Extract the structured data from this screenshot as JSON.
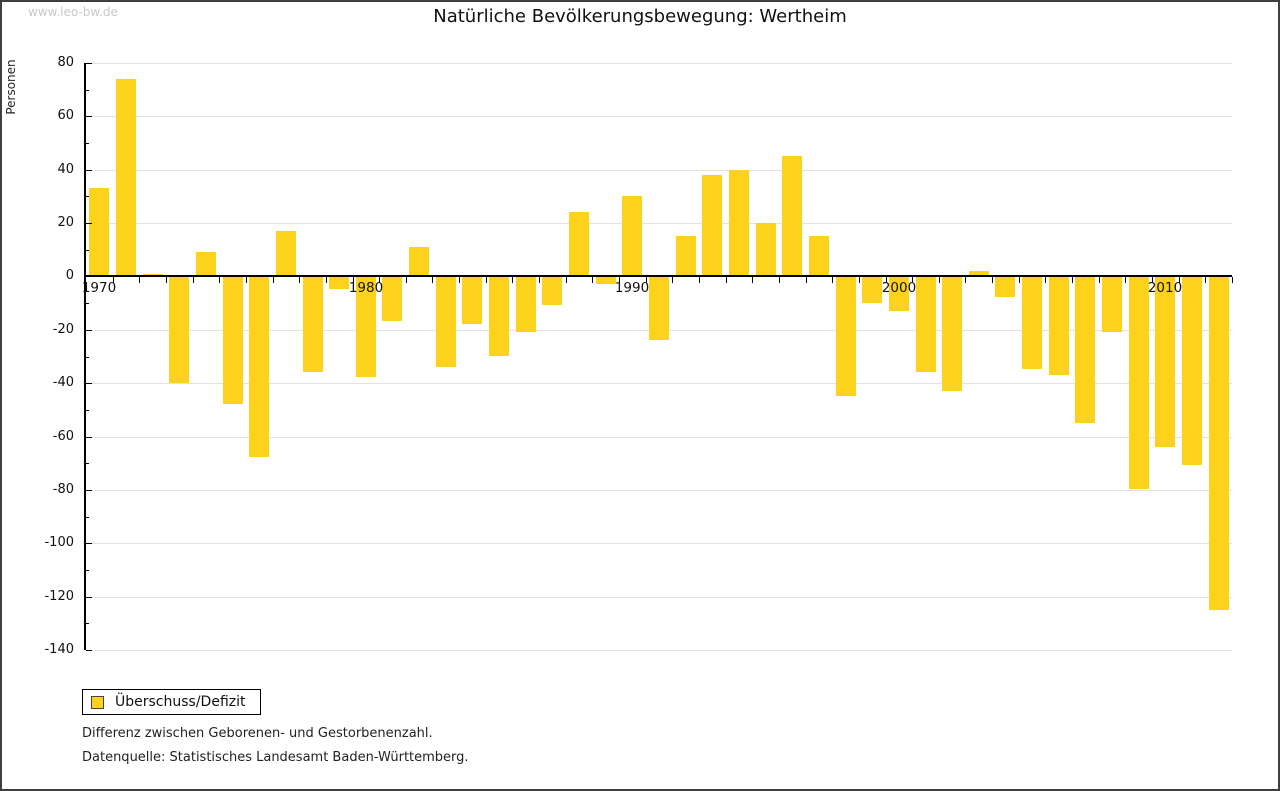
{
  "watermark": "www.leo-bw.de",
  "title": "Natürliche Bevölkerungsbewegung: Wertheim",
  "legend": {
    "label": "Überschuss/Defizit"
  },
  "footnotes": {
    "line1": "Differenz zwischen Geborenen- und Gestorbenenzahl.",
    "line2": "Datenquelle: Statistisches Landesamt Baden-Württemberg."
  },
  "colors": {
    "bar": "#fcd21c",
    "grid": "#e2e2e2",
    "axis": "#000000",
    "watermark": "#c9c9c9"
  },
  "chart_data": {
    "type": "bar",
    "title": "Natürliche Bevölkerungsbewegung: Wertheim",
    "ylabel": "Personen",
    "xlabel": "",
    "ylim": [
      -140,
      80
    ],
    "ytick_step": 20,
    "yminor_step": 10,
    "grid": true,
    "legend_position": "bottom-left",
    "x": [
      1970,
      1971,
      1972,
      1973,
      1974,
      1975,
      1976,
      1977,
      1978,
      1979,
      1980,
      1981,
      1982,
      1983,
      1984,
      1985,
      1986,
      1987,
      1988,
      1989,
      1990,
      1991,
      1992,
      1993,
      1994,
      1995,
      1996,
      1997,
      1998,
      1999,
      2000,
      2001,
      2002,
      2003,
      2004,
      2005,
      2006,
      2007,
      2008,
      2009,
      2010,
      2011,
      2012
    ],
    "xtick_labels": [
      "1970",
      "1980",
      "1990",
      "2000",
      "2010"
    ],
    "series": [
      {
        "name": "Überschuss/Defizit",
        "values": [
          33,
          74,
          1,
          -40,
          9,
          -48,
          -68,
          17,
          -36,
          -5,
          -38,
          -17,
          11,
          -34,
          -18,
          -30,
          -21,
          -11,
          24,
          -3,
          30,
          -24,
          15,
          38,
          40,
          20,
          45,
          15,
          -45,
          -10,
          -13,
          -36,
          -43,
          2,
          -8,
          -35,
          -37,
          -55,
          -21,
          -80,
          -64,
          -71,
          -125
        ]
      }
    ]
  }
}
